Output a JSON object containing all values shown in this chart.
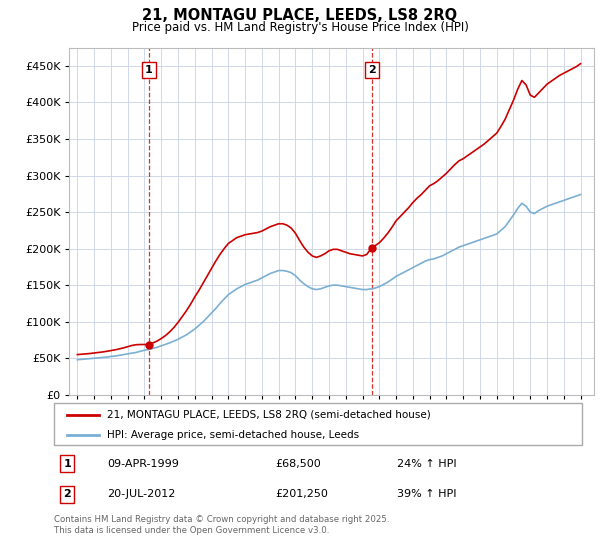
{
  "title": "21, MONTAGU PLACE, LEEDS, LS8 2RQ",
  "subtitle": "Price paid vs. HM Land Registry's House Price Index (HPI)",
  "sale1_date": "09-APR-1999",
  "sale1_price": 68500,
  "sale1_hpi_pct": "24% ↑ HPI",
  "sale1_year": 1999.27,
  "sale2_date": "20-JUL-2012",
  "sale2_price": 201250,
  "sale2_hpi_pct": "39% ↑ HPI",
  "sale2_year": 2012.55,
  "legend_property": "21, MONTAGU PLACE, LEEDS, LS8 2RQ (semi-detached house)",
  "legend_hpi": "HPI: Average price, semi-detached house, Leeds",
  "footer": "Contains HM Land Registry data © Crown copyright and database right 2025.\nThis data is licensed under the Open Government Licence v3.0.",
  "property_color": "#cc0000",
  "hpi_color": "#7bafd4",
  "dashed_line_color": "#cc0000",
  "background_color": "#ffffff",
  "grid_color": "#d0d8e8",
  "ylim": [
    0,
    475000
  ],
  "yticks": [
    0,
    50000,
    100000,
    150000,
    200000,
    250000,
    300000,
    350000,
    400000,
    450000
  ],
  "xlim": [
    1994.5,
    2025.8
  ],
  "xticks": [
    1995,
    1996,
    1997,
    1998,
    1999,
    2000,
    2001,
    2002,
    2003,
    2004,
    2005,
    2006,
    2007,
    2008,
    2009,
    2010,
    2011,
    2012,
    2013,
    2014,
    2015,
    2016,
    2017,
    2018,
    2019,
    2020,
    2021,
    2022,
    2023,
    2024,
    2025
  ],
  "hpi_years": [
    1995,
    1995.25,
    1995.5,
    1995.75,
    1996,
    1996.25,
    1996.5,
    1996.75,
    1997,
    1997.25,
    1997.5,
    1997.75,
    1998,
    1998.25,
    1998.5,
    1998.75,
    1999,
    1999.25,
    1999.5,
    1999.75,
    2000,
    2000.25,
    2000.5,
    2000.75,
    2001,
    2001.25,
    2001.5,
    2001.75,
    2002,
    2002.25,
    2002.5,
    2002.75,
    2003,
    2003.25,
    2003.5,
    2003.75,
    2004,
    2004.25,
    2004.5,
    2004.75,
    2005,
    2005.25,
    2005.5,
    2005.75,
    2006,
    2006.25,
    2006.5,
    2006.75,
    2007,
    2007.25,
    2007.5,
    2007.75,
    2008,
    2008.25,
    2008.5,
    2008.75,
    2009,
    2009.25,
    2009.5,
    2009.75,
    2010,
    2010.25,
    2010.5,
    2010.75,
    2011,
    2011.25,
    2011.5,
    2011.75,
    2012,
    2012.25,
    2012.5,
    2012.75,
    2013,
    2013.25,
    2013.5,
    2013.75,
    2014,
    2014.25,
    2014.5,
    2014.75,
    2015,
    2015.25,
    2015.5,
    2015.75,
    2016,
    2016.25,
    2016.5,
    2016.75,
    2017,
    2017.25,
    2017.5,
    2017.75,
    2018,
    2018.25,
    2018.5,
    2018.75,
    2019,
    2019.25,
    2019.5,
    2019.75,
    2020,
    2020.25,
    2020.5,
    2020.75,
    2021,
    2021.25,
    2021.5,
    2021.75,
    2022,
    2022.25,
    2022.5,
    2022.75,
    2023,
    2023.25,
    2023.5,
    2023.75,
    2024,
    2024.25,
    2024.5,
    2024.75,
    2025
  ],
  "hpi_values": [
    48000,
    48500,
    49000,
    49500,
    50000,
    50500,
    51000,
    51500,
    52500,
    53000,
    54000,
    55000,
    56000,
    57000,
    58000,
    59500,
    61000,
    62000,
    63500,
    65000,
    67000,
    69000,
    71000,
    73500,
    76000,
    79000,
    82000,
    86000,
    90000,
    95000,
    100000,
    106000,
    112000,
    118000,
    125000,
    131000,
    137000,
    141000,
    145000,
    148000,
    151000,
    153000,
    155000,
    157000,
    160000,
    163000,
    166000,
    168000,
    170000,
    170000,
    169000,
    167000,
    163000,
    157000,
    152000,
    148000,
    145000,
    144000,
    145000,
    147000,
    149000,
    150000,
    150000,
    149000,
    148000,
    147000,
    146000,
    145000,
    144000,
    144000,
    145000,
    146000,
    148000,
    151000,
    154000,
    158000,
    162000,
    165000,
    168000,
    171000,
    174000,
    177000,
    180000,
    183000,
    185000,
    186000,
    188000,
    190000,
    193000,
    196000,
    199000,
    202000,
    204000,
    206000,
    208000,
    210000,
    212000,
    214000,
    216000,
    218000,
    220000,
    225000,
    230000,
    238000,
    246000,
    255000,
    262000,
    258000,
    250000,
    248000,
    252000,
    255000,
    258000,
    260000,
    262000,
    264000,
    266000,
    268000,
    270000,
    272000,
    274000
  ],
  "property_years": [
    1995,
    1995.25,
    1995.5,
    1995.75,
    1996,
    1996.25,
    1996.5,
    1996.75,
    1997,
    1997.25,
    1997.5,
    1997.75,
    1998,
    1998.25,
    1998.5,
    1998.75,
    1999,
    1999.27,
    1999.5,
    1999.75,
    2000,
    2000.25,
    2000.5,
    2000.75,
    2001,
    2001.25,
    2001.5,
    2001.75,
    2002,
    2002.25,
    2002.5,
    2002.75,
    2003,
    2003.25,
    2003.5,
    2003.75,
    2004,
    2004.25,
    2004.5,
    2004.75,
    2005,
    2005.25,
    2005.5,
    2005.75,
    2006,
    2006.25,
    2006.5,
    2006.75,
    2007,
    2007.25,
    2007.5,
    2007.75,
    2008,
    2008.25,
    2008.5,
    2008.75,
    2009,
    2009.25,
    2009.5,
    2009.75,
    2010,
    2010.25,
    2010.5,
    2010.75,
    2011,
    2011.25,
    2011.5,
    2011.75,
    2012,
    2012.25,
    2012.55,
    2012.75,
    2013,
    2013.25,
    2013.5,
    2013.75,
    2014,
    2014.25,
    2014.5,
    2014.75,
    2015,
    2015.25,
    2015.5,
    2015.75,
    2016,
    2016.25,
    2016.5,
    2016.75,
    2017,
    2017.25,
    2017.5,
    2017.75,
    2018,
    2018.25,
    2018.5,
    2018.75,
    2019,
    2019.25,
    2019.5,
    2019.75,
    2020,
    2020.25,
    2020.5,
    2020.75,
    2021,
    2021.25,
    2021.5,
    2021.75,
    2022,
    2022.25,
    2022.5,
    2022.75,
    2023,
    2023.25,
    2023.5,
    2023.75,
    2024,
    2024.25,
    2024.5,
    2024.75,
    2025
  ],
  "property_values": [
    55000,
    55500,
    56000,
    56500,
    57200,
    57900,
    58600,
    59500,
    60500,
    61500,
    62800,
    64200,
    65800,
    67500,
    68500,
    68800,
    68800,
    68500,
    71000,
    73500,
    77000,
    81000,
    86000,
    92000,
    99000,
    107000,
    115000,
    124000,
    134000,
    143000,
    153000,
    163000,
    173000,
    183000,
    192000,
    200000,
    207000,
    211000,
    215000,
    217000,
    219000,
    220000,
    221000,
    222000,
    224000,
    227000,
    230000,
    232000,
    234000,
    234000,
    232000,
    228000,
    221000,
    211000,
    202000,
    195000,
    190000,
    188000,
    190000,
    193000,
    197000,
    199000,
    199000,
    197000,
    195000,
    193000,
    192000,
    191000,
    190000,
    192000,
    201250,
    204000,
    208000,
    214000,
    221000,
    229000,
    238000,
    244000,
    250000,
    256000,
    263000,
    269000,
    274000,
    280000,
    286000,
    289000,
    293000,
    298000,
    303000,
    309000,
    315000,
    320000,
    323000,
    327000,
    331000,
    335000,
    339000,
    343000,
    348000,
    353000,
    358000,
    367000,
    377000,
    390000,
    403000,
    418000,
    430000,
    424000,
    410000,
    407000,
    413000,
    419000,
    425000,
    429000,
    433000,
    437000,
    440000,
    443000,
    446000,
    449000,
    453000
  ]
}
